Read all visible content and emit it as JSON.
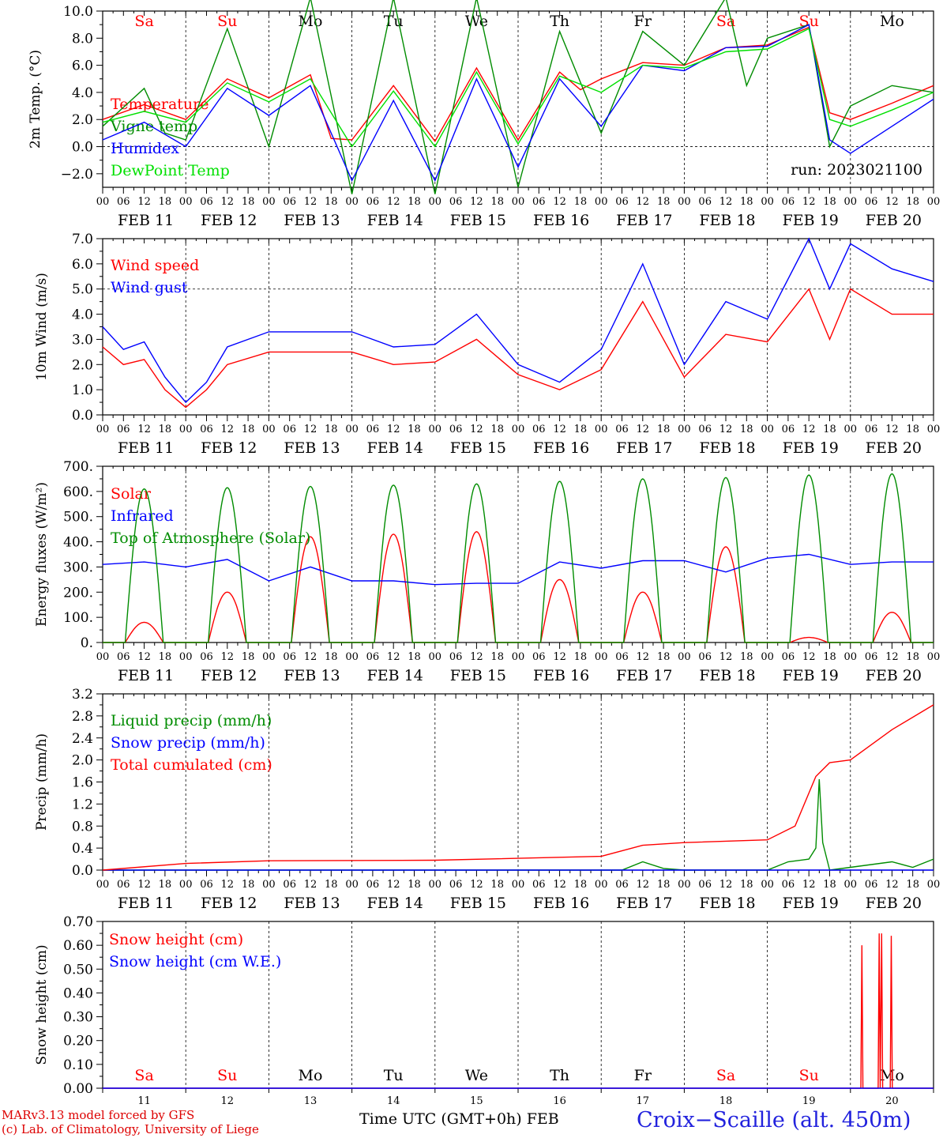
{
  "days": [
    {
      "date": "FEB 11",
      "num": "11",
      "wd": "Sa",
      "wd_color": "#ff0000"
    },
    {
      "date": "FEB 12",
      "num": "12",
      "wd": "Su",
      "wd_color": "#ff0000"
    },
    {
      "date": "FEB 13",
      "num": "13",
      "wd": "Mo",
      "wd_color": "#000000"
    },
    {
      "date": "FEB 14",
      "num": "14",
      "wd": "Tu",
      "wd_color": "#000000"
    },
    {
      "date": "FEB 15",
      "num": "15",
      "wd": "We",
      "wd_color": "#000000"
    },
    {
      "date": "FEB 16",
      "num": "16",
      "wd": "Th",
      "wd_color": "#000000"
    },
    {
      "date": "FEB 17",
      "num": "17",
      "wd": "Fr",
      "wd_color": "#000000"
    },
    {
      "date": "FEB 18",
      "num": "18",
      "wd": "Sa",
      "wd_color": "#ff0000"
    },
    {
      "date": "FEB 19",
      "num": "19",
      "wd": "Su",
      "wd_color": "#ff0000"
    },
    {
      "date": "FEB 20",
      "num": "20",
      "wd": "Mo",
      "wd_color": "#000000"
    }
  ],
  "hour_ticks": [
    "00",
    "06",
    "12",
    "18"
  ],
  "colors": {
    "red": "#ff0000",
    "green": "#008c00",
    "blue": "#0000ff",
    "lightgreen": "#00e000",
    "axis": "#000000"
  },
  "chart_data": [
    {
      "type": "line",
      "ylabel": "2m Temp. (°C)",
      "ylim": [
        -3,
        10
      ],
      "yticks": [
        "10.0",
        "8.0",
        "6.0",
        "4.0",
        "2.0",
        "0.0",
        "−2.0"
      ],
      "ytick_values": [
        10,
        8,
        6,
        4,
        2,
        0,
        -2
      ],
      "dashed_h": [
        0
      ],
      "annotation": "run: 2023021100",
      "series": [
        {
          "name": "Temperature",
          "color": "#ff0000",
          "points": [
            [
              0,
              2.0
            ],
            [
              12,
              3.1
            ],
            [
              24,
              2.0
            ],
            [
              36,
              5.0
            ],
            [
              48,
              3.6
            ],
            [
              60,
              5.3
            ],
            [
              66,
              0.6
            ],
            [
              72,
              0.5
            ],
            [
              84,
              4.5
            ],
            [
              96,
              0.4
            ],
            [
              108,
              5.8
            ],
            [
              120,
              0.5
            ],
            [
              132,
              5.5
            ],
            [
              138,
              4.2
            ],
            [
              144,
              5.0
            ],
            [
              156,
              6.2
            ],
            [
              168,
              6.0
            ],
            [
              180,
              7.3
            ],
            [
              192,
              7.5
            ],
            [
              204,
              8.8
            ],
            [
              210,
              2.5
            ],
            [
              216,
              2.0
            ],
            [
              228,
              3.2
            ],
            [
              240,
              4.5
            ]
          ]
        },
        {
          "name": "Vigne temp",
          "color": "#008c00",
          "points": [
            [
              0,
              1.5
            ],
            [
              12,
              4.3
            ],
            [
              18,
              1.0
            ],
            [
              24,
              0.5
            ],
            [
              36,
              8.7
            ],
            [
              48,
              0.0
            ],
            [
              60,
              11.0
            ],
            [
              72,
              -3.5
            ],
            [
              84,
              11.0
            ],
            [
              96,
              -3.5
            ],
            [
              108,
              11.0
            ],
            [
              120,
              -3.0
            ],
            [
              132,
              8.5
            ],
            [
              144,
              1.0
            ],
            [
              156,
              8.5
            ],
            [
              168,
              6.0
            ],
            [
              180,
              11.0
            ],
            [
              186,
              4.5
            ],
            [
              192,
              8.0
            ],
            [
              204,
              9.0
            ],
            [
              210,
              0.0
            ],
            [
              216,
              3.0
            ],
            [
              228,
              4.5
            ],
            [
              240,
              4.0
            ]
          ]
        },
        {
          "name": "Humidex",
          "color": "#0000ff",
          "points": [
            [
              0,
              0.5
            ],
            [
              12,
              1.8
            ],
            [
              24,
              0.0
            ],
            [
              36,
              4.3
            ],
            [
              48,
              2.3
            ],
            [
              60,
              4.5
            ],
            [
              72,
              -2.5
            ],
            [
              84,
              3.4
            ],
            [
              96,
              -2.5
            ],
            [
              108,
              5.0
            ],
            [
              120,
              -1.5
            ],
            [
              132,
              5.0
            ],
            [
              144,
              1.5
            ],
            [
              156,
              6.0
            ],
            [
              168,
              5.6
            ],
            [
              180,
              7.3
            ],
            [
              192,
              7.4
            ],
            [
              204,
              9.0
            ],
            [
              210,
              0.5
            ],
            [
              216,
              -0.5
            ],
            [
              228,
              1.5
            ],
            [
              240,
              3.5
            ]
          ]
        },
        {
          "name": "DewPoint Temp",
          "color": "#00e000",
          "points": [
            [
              0,
              1.8
            ],
            [
              12,
              2.6
            ],
            [
              24,
              1.8
            ],
            [
              36,
              4.7
            ],
            [
              48,
              3.3
            ],
            [
              60,
              5.0
            ],
            [
              72,
              0.0
            ],
            [
              84,
              4.1
            ],
            [
              96,
              0.0
            ],
            [
              108,
              5.5
            ],
            [
              120,
              0.2
            ],
            [
              132,
              5.2
            ],
            [
              144,
              4.0
            ],
            [
              156,
              6.0
            ],
            [
              168,
              5.8
            ],
            [
              180,
              7.0
            ],
            [
              192,
              7.2
            ],
            [
              204,
              8.7
            ],
            [
              210,
              2.0
            ],
            [
              216,
              1.5
            ],
            [
              228,
              2.7
            ],
            [
              240,
              4.0
            ]
          ]
        }
      ]
    },
    {
      "type": "line",
      "ylabel": "10m Wind (m/s)",
      "ylim": [
        0,
        7
      ],
      "yticks": [
        "7.0",
        "6.0",
        "5.0",
        "4.0",
        "3.0",
        "2.0",
        "1.0",
        "0.0"
      ],
      "ytick_values": [
        7,
        6,
        5,
        4,
        3,
        2,
        1,
        0
      ],
      "dashed_h": [
        5
      ],
      "series": [
        {
          "name": "Wind speed",
          "color": "#ff0000",
          "points": [
            [
              0,
              2.7
            ],
            [
              6,
              2.0
            ],
            [
              12,
              2.2
            ],
            [
              18,
              1.0
            ],
            [
              24,
              0.3
            ],
            [
              30,
              1.0
            ],
            [
              36,
              2.0
            ],
            [
              48,
              2.5
            ],
            [
              60,
              2.5
            ],
            [
              72,
              2.5
            ],
            [
              84,
              2.0
            ],
            [
              96,
              2.1
            ],
            [
              108,
              3.0
            ],
            [
              120,
              1.6
            ],
            [
              132,
              1.0
            ],
            [
              144,
              1.8
            ],
            [
              156,
              4.5
            ],
            [
              168,
              1.5
            ],
            [
              180,
              3.2
            ],
            [
              192,
              2.9
            ],
            [
              204,
              5.0
            ],
            [
              210,
              3.0
            ],
            [
              216,
              5.0
            ],
            [
              228,
              4.0
            ],
            [
              240,
              4.0
            ]
          ]
        },
        {
          "name": "Wind gust",
          "color": "#0000ff",
          "points": [
            [
              0,
              3.5
            ],
            [
              6,
              2.6
            ],
            [
              12,
              2.9
            ],
            [
              18,
              1.5
            ],
            [
              24,
              0.5
            ],
            [
              30,
              1.3
            ],
            [
              36,
              2.7
            ],
            [
              48,
              3.3
            ],
            [
              60,
              3.3
            ],
            [
              72,
              3.3
            ],
            [
              84,
              2.7
            ],
            [
              96,
              2.8
            ],
            [
              108,
              4.0
            ],
            [
              120,
              2.0
            ],
            [
              132,
              1.3
            ],
            [
              144,
              2.6
            ],
            [
              156,
              6.0
            ],
            [
              168,
              2.0
            ],
            [
              180,
              4.5
            ],
            [
              192,
              3.8
            ],
            [
              204,
              7.0
            ],
            [
              210,
              5.0
            ],
            [
              216,
              6.8
            ],
            [
              228,
              5.8
            ],
            [
              240,
              5.3
            ]
          ]
        }
      ]
    },
    {
      "type": "line",
      "ylabel": "Energy fluxes (W/m²)",
      "ylim": [
        0,
        700
      ],
      "yticks": [
        "700.",
        "600.",
        "500.",
        "400.",
        "300.",
        "200.",
        "100.",
        "0."
      ],
      "ytick_values": [
        700,
        600,
        500,
        400,
        300,
        200,
        100,
        0
      ],
      "dashed_h": [],
      "series": [
        {
          "name": "Solar",
          "color": "#ff0000",
          "peaks": [
            80,
            200,
            420,
            430,
            440,
            250,
            200,
            380,
            20,
            120
          ]
        },
        {
          "name": "Infrared",
          "color": "#0000ff",
          "points": [
            [
              0,
              310
            ],
            [
              12,
              320
            ],
            [
              24,
              300
            ],
            [
              36,
              330
            ],
            [
              48,
              245
            ],
            [
              60,
              300
            ],
            [
              72,
              245
            ],
            [
              84,
              245
            ],
            [
              96,
              230
            ],
            [
              108,
              235
            ],
            [
              120,
              235
            ],
            [
              132,
              320
            ],
            [
              144,
              295
            ],
            [
              156,
              325
            ],
            [
              168,
              325
            ],
            [
              180,
              280
            ],
            [
              192,
              335
            ],
            [
              204,
              350
            ],
            [
              216,
              310
            ],
            [
              228,
              320
            ],
            [
              240,
              320
            ]
          ]
        },
        {
          "name": "Top of Atmosphere (Solar)",
          "color": "#008c00",
          "peaks": [
            610,
            615,
            620,
            625,
            630,
            640,
            650,
            655,
            665,
            670
          ]
        }
      ]
    },
    {
      "type": "line",
      "ylabel": "Precip (mm/h)",
      "ylim": [
        0,
        3.2
      ],
      "yticks": [
        "3.2",
        "2.8",
        "2.4",
        "2.0",
        "1.6",
        "1.2",
        "0.8",
        "0.4",
        "0.0"
      ],
      "ytick_values": [
        3.2,
        2.8,
        2.4,
        2.0,
        1.6,
        1.2,
        0.8,
        0.4,
        0.0
      ],
      "dashed_h": [],
      "series": [
        {
          "name": "Liquid precip (mm/h)",
          "color": "#008c00",
          "points": [
            [
              0,
              0
            ],
            [
              150,
              0
            ],
            [
              156,
              0.15
            ],
            [
              162,
              0.03
            ],
            [
              168,
              0
            ],
            [
              192,
              0.0
            ],
            [
              198,
              0.15
            ],
            [
              204,
              0.2
            ],
            [
              206,
              0.4
            ],
            [
              207,
              1.65
            ],
            [
              208,
              0.5
            ],
            [
              210,
              0
            ],
            [
              216,
              0.05
            ],
            [
              228,
              0.15
            ],
            [
              234,
              0.05
            ],
            [
              240,
              0.2
            ]
          ]
        },
        {
          "name": "Snow precip (mm/h)",
          "color": "#0000ff",
          "points": [
            [
              0,
              0
            ],
            [
              240,
              0
            ]
          ]
        },
        {
          "name": "Total cumulated (cm)",
          "color": "#ff0000",
          "points": [
            [
              0,
              0
            ],
            [
              24,
              0.12
            ],
            [
              48,
              0.17
            ],
            [
              96,
              0.18
            ],
            [
              144,
              0.25
            ],
            [
              156,
              0.45
            ],
            [
              168,
              0.5
            ],
            [
              192,
              0.55
            ],
            [
              200,
              0.8
            ],
            [
              206,
              1.7
            ],
            [
              210,
              1.95
            ],
            [
              216,
              2.0
            ],
            [
              228,
              2.55
            ],
            [
              240,
              3.0
            ]
          ]
        }
      ]
    },
    {
      "type": "line",
      "ylabel": "Snow height (cm)",
      "ylim": [
        0,
        0.7
      ],
      "yticks": [
        "0.70",
        "0.60",
        "0.50",
        "0.40",
        "0.30",
        "0.20",
        "0.10",
        "0.00"
      ],
      "ytick_values": [
        0.7,
        0.6,
        0.5,
        0.4,
        0.3,
        0.2,
        0.1,
        0.0
      ],
      "dashed_h": [],
      "series": [
        {
          "name": "Snow height (cm)",
          "color": "#ff0000",
          "points": [
            [
              0,
              0
            ],
            [
              219,
              0
            ],
            [
              219.3,
              0.6
            ],
            [
              219.6,
              0
            ],
            [
              224,
              0
            ],
            [
              224.3,
              0.65
            ],
            [
              224.6,
              0
            ],
            [
              225,
              0.65
            ],
            [
              225.3,
              0
            ],
            [
              227.5,
              0
            ],
            [
              227.8,
              0.64
            ],
            [
              228.1,
              0
            ],
            [
              240,
              0
            ]
          ]
        },
        {
          "name": "Snow height (cm W.E.)",
          "color": "#0000ff",
          "points": [
            [
              0,
              0
            ],
            [
              240,
              0
            ]
          ]
        }
      ]
    }
  ],
  "footer": {
    "credit_line1": "MARv3.13 model forced by GFS",
    "credit_line2": "(c) Lab. of Climatology, University of Liege",
    "x_title": "Time UTC (GMT+0h)",
    "month": "FEB",
    "station": "Croix−Scaille (alt. 450m)"
  }
}
